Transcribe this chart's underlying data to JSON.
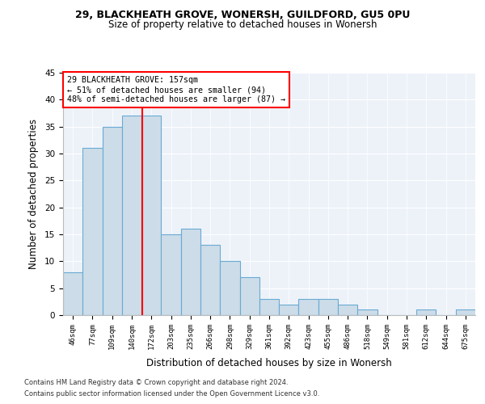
{
  "title1": "29, BLACKHEATH GROVE, WONERSH, GUILDFORD, GU5 0PU",
  "title2": "Size of property relative to detached houses in Wonersh",
  "xlabel": "Distribution of detached houses by size in Wonersh",
  "ylabel": "Number of detached properties",
  "bar_labels": [
    "46sqm",
    "77sqm",
    "109sqm",
    "140sqm",
    "172sqm",
    "203sqm",
    "235sqm",
    "266sqm",
    "298sqm",
    "329sqm",
    "361sqm",
    "392sqm",
    "423sqm",
    "455sqm",
    "486sqm",
    "518sqm",
    "549sqm",
    "581sqm",
    "612sqm",
    "644sqm",
    "675sqm"
  ],
  "bar_values": [
    8,
    31,
    35,
    37,
    37,
    15,
    16,
    13,
    10,
    7,
    3,
    2,
    3,
    3,
    2,
    1,
    0,
    0,
    1,
    0,
    1
  ],
  "bar_color": "#ccdce8",
  "bar_edge_color": "#6aaad4",
  "bar_linewidth": 0.8,
  "annotation_text_line1": "29 BLACKHEATH GROVE: 157sqm",
  "annotation_text_line2": "← 51% of detached houses are smaller (94)",
  "annotation_text_line3": "48% of semi-detached houses are larger (87) →",
  "red_line_index": 3.53,
  "ylim": [
    0,
    45
  ],
  "yticks": [
    0,
    5,
    10,
    15,
    20,
    25,
    30,
    35,
    40,
    45
  ],
  "background_color": "#edf2f9",
  "footnote1": "Contains HM Land Registry data © Crown copyright and database right 2024.",
  "footnote2": "Contains public sector information licensed under the Open Government Licence v3.0."
}
